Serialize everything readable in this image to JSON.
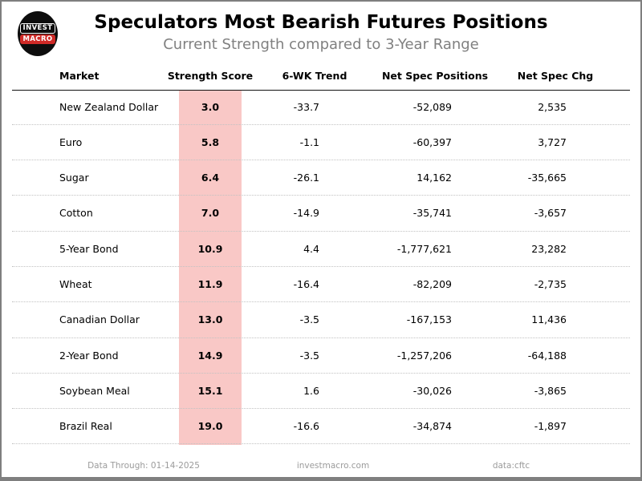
{
  "header": {
    "title": "Speculators Most Bearish Futures Positions",
    "subtitle": "Current Strength compared to 3-Year Range",
    "logo": {
      "line1": "INVEST",
      "line2": "MACRO"
    }
  },
  "chart_data": {
    "type": "table",
    "title": "Speculators Most Bearish Futures Positions",
    "subtitle": "Current Strength compared to 3-Year Range",
    "columns": [
      "Market",
      "Strength Score",
      "6-WK Trend",
      "Net Spec Positions",
      "Net Spec Chg"
    ],
    "rows": [
      [
        "New Zealand Dollar",
        "3.0",
        "-33.7",
        "-52,089",
        "2,535"
      ],
      [
        "Euro",
        "5.8",
        "-1.1",
        "-60,397",
        "3,727"
      ],
      [
        "Sugar",
        "6.4",
        "-26.1",
        "14,162",
        "-35,665"
      ],
      [
        "Cotton",
        "7.0",
        "-14.9",
        "-35,741",
        "-3,657"
      ],
      [
        "5-Year Bond",
        "10.9",
        "4.4",
        "-1,777,621",
        "23,282"
      ],
      [
        "Wheat",
        "11.9",
        "-16.4",
        "-82,209",
        "-2,735"
      ],
      [
        "Canadian Dollar",
        "13.0",
        "-3.5",
        "-167,153",
        "11,436"
      ],
      [
        "2-Year Bond",
        "14.9",
        "-3.5",
        "-1,257,206",
        "-64,188"
      ],
      [
        "Soybean Meal",
        "15.1",
        "1.6",
        "-30,026",
        "-3,865"
      ],
      [
        "Brazil Real",
        "19.0",
        "-16.6",
        "-34,874",
        "-1,897"
      ]
    ],
    "highlight_column": "Strength Score",
    "layout": {
      "grid": "dotted row separators",
      "header_rule": "solid black"
    }
  },
  "footer": {
    "data_through": "Data Through: 01-14-2025",
    "website": "investmacro.com",
    "source": "data:cftc"
  },
  "colors": {
    "highlight_pink": "#f9c8c6",
    "logo_red": "#cf2a27",
    "frame_border": "#7f7f7f",
    "subtitle_gray": "#808080",
    "footer_gray": "#9b9b9b"
  }
}
